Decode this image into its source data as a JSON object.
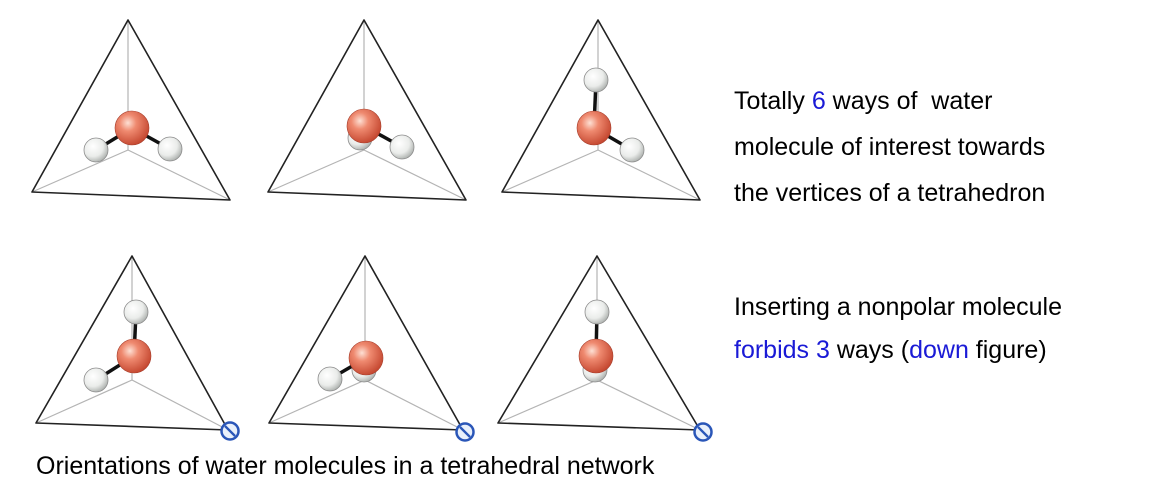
{
  "text": {
    "block1": {
      "line1": {
        "a": "Totally ",
        "b": "6",
        "c": " ways of  water"
      },
      "line2": "molecule of interest towards",
      "line3": "the vertices of a tetrahedron"
    },
    "block2": {
      "line1": "Inserting a nonpolar molecule",
      "line2": {
        "a": "forbids 3",
        "b": " ways (",
        "c": "down",
        "d": " figure)"
      }
    },
    "caption": "Orientations of water molecules in a tetrahedral network"
  },
  "figures": [
    {
      "row": "top",
      "orientation": "both-hydrogens-to-base",
      "nonpolar_marker": false
    },
    {
      "row": "top",
      "orientation": "one-hydrogen-back-one-right",
      "nonpolar_marker": false
    },
    {
      "row": "top",
      "orientation": "one-hydrogen-up-one-right",
      "nonpolar_marker": false
    },
    {
      "row": "bottom",
      "orientation": "one-hydrogen-up-one-left",
      "nonpolar_marker": true
    },
    {
      "row": "bottom",
      "orientation": "one-hydrogen-back-one-left",
      "nonpolar_marker": true
    },
    {
      "row": "bottom",
      "orientation": "one-hydrogen-up-one-back",
      "nonpolar_marker": true
    }
  ],
  "colors": {
    "highlight": "#1a1ad6",
    "oxygen": "#e8705a",
    "hydrogen": "#eef0ee",
    "marker": "#2a56b8",
    "edge": "#222222",
    "inner_edge": "#b4b4b4"
  }
}
